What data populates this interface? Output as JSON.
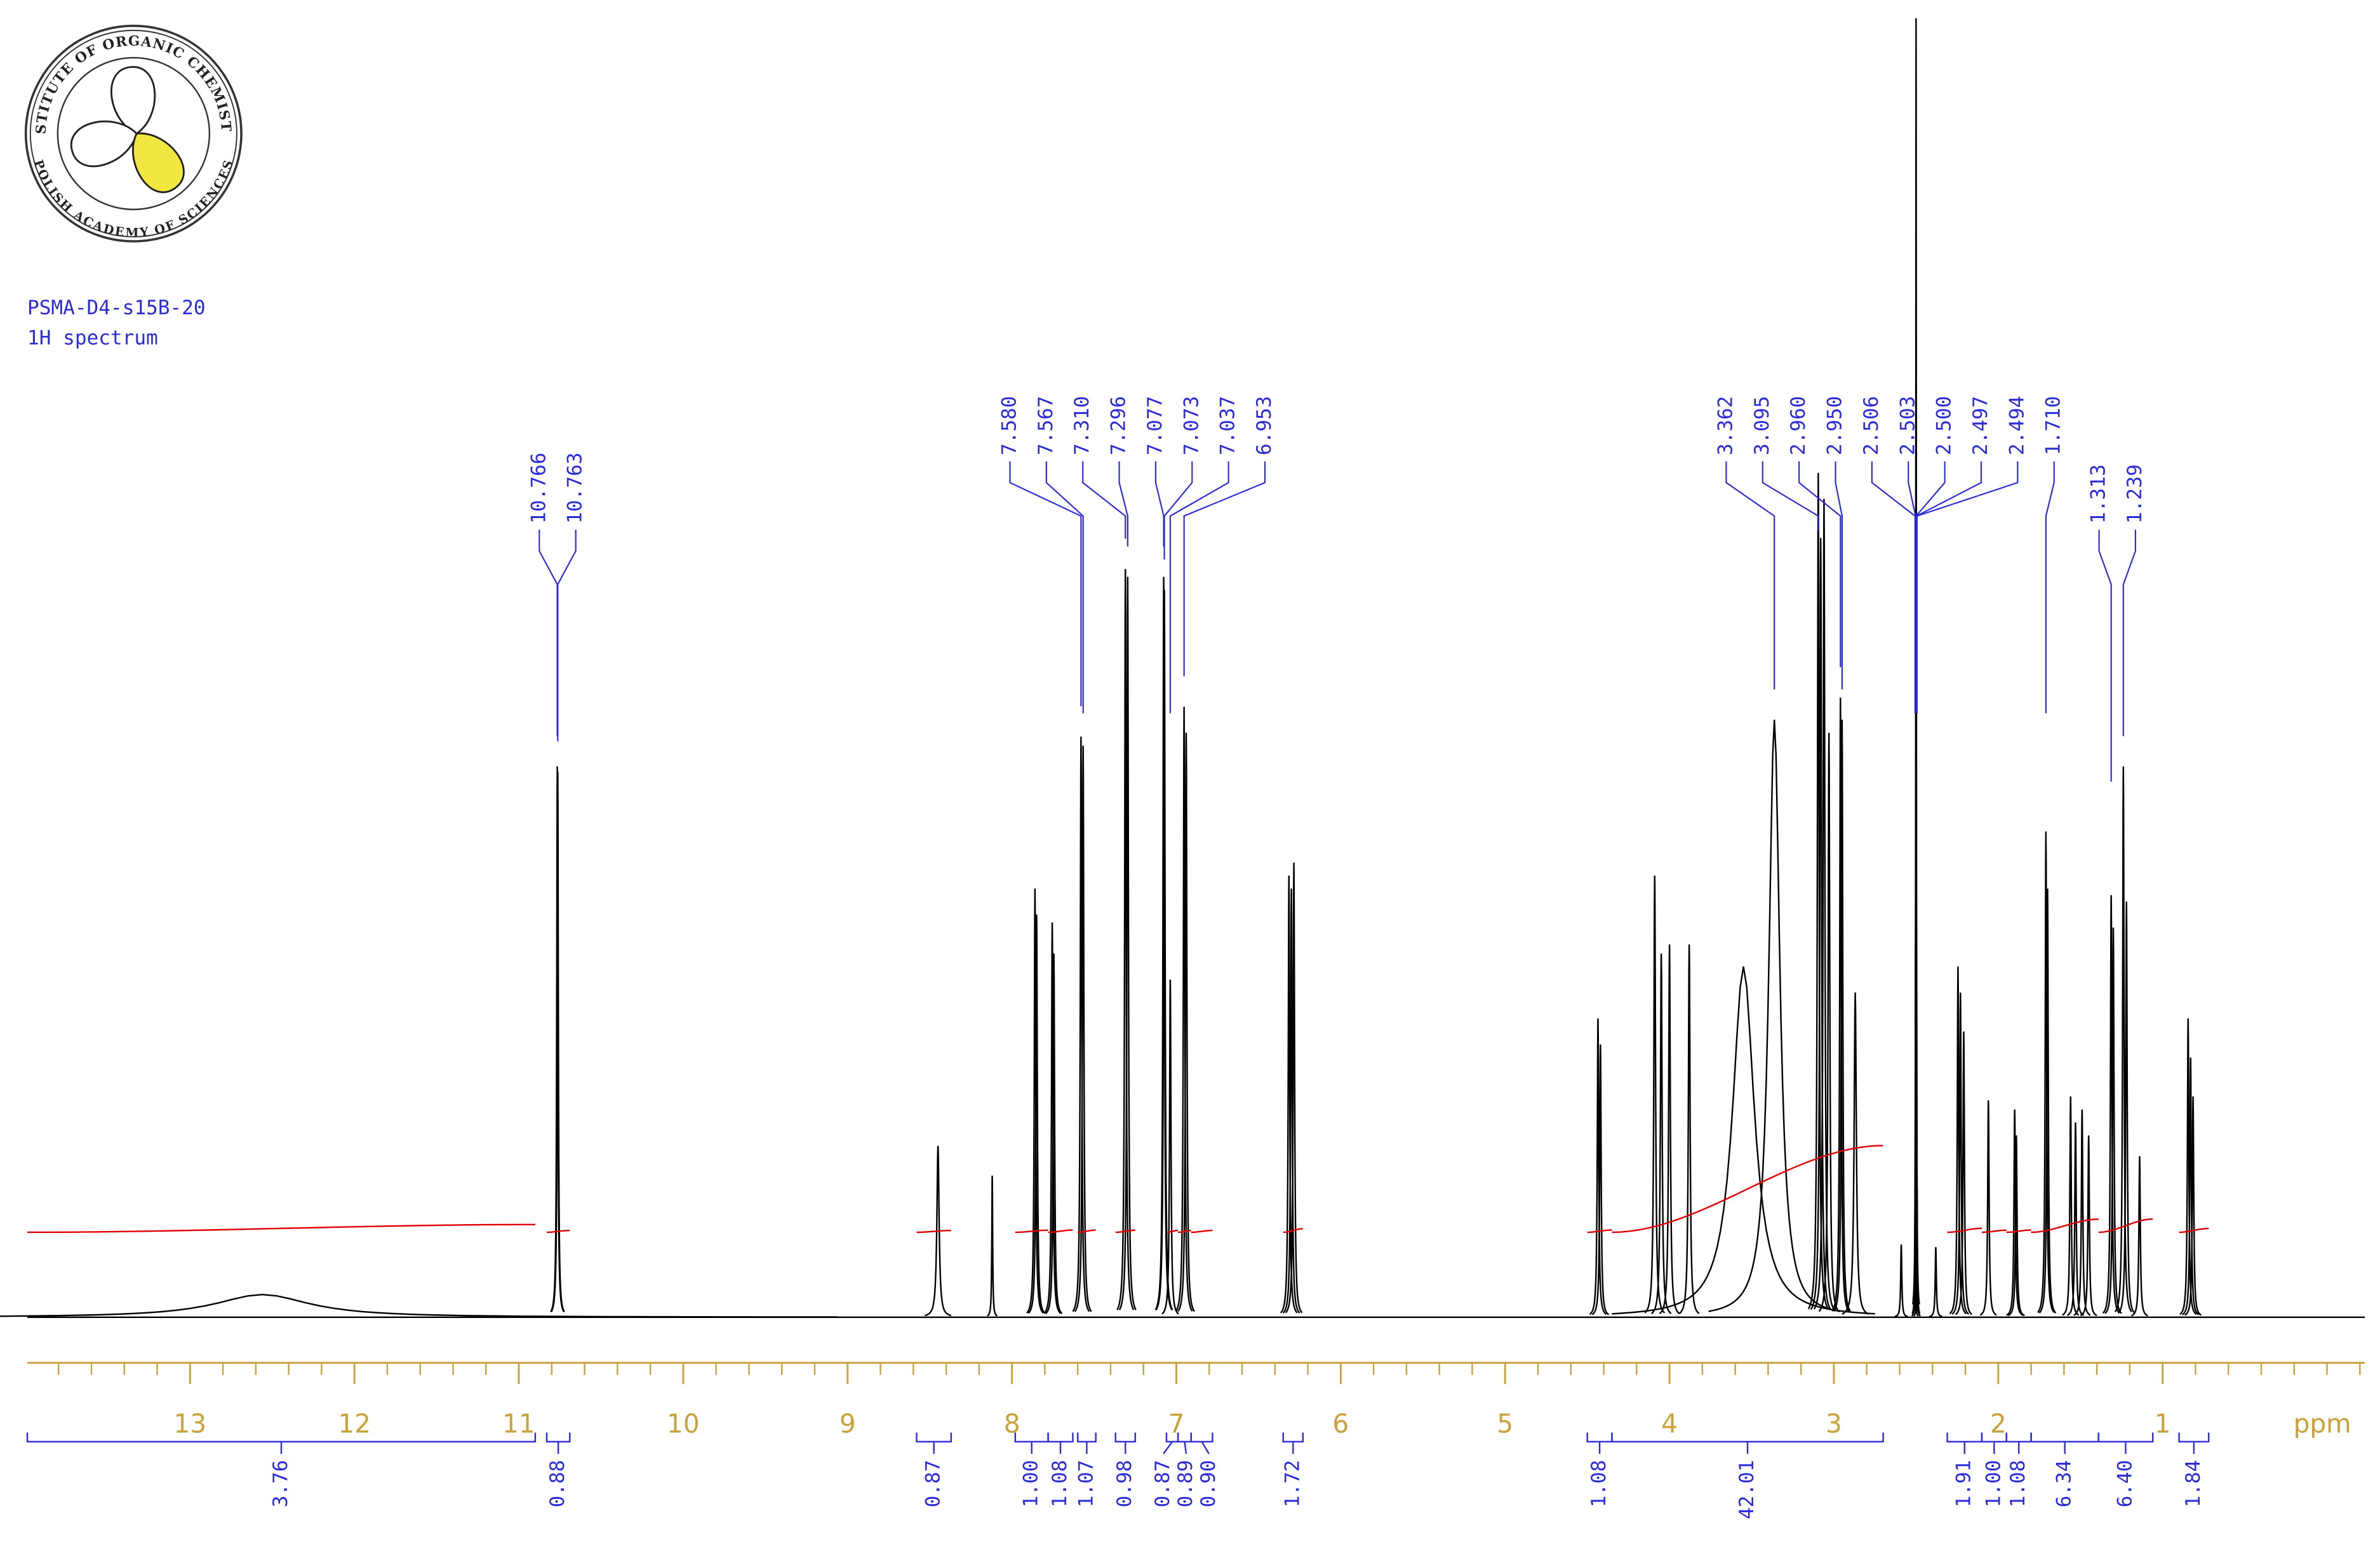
{
  "logo": {
    "top_text": "INSTITUTE OF ORGANIC CHEMISTRY",
    "bottom_text": "POLISH ACADEMY OF SCIENCES"
  },
  "chart_data": {
    "type": "spectrum",
    "title": "PSMA-D4-s15B-20",
    "subtitle": "1H spectrum",
    "xlabel": "ppm",
    "xlim": [
      13.99,
      -0.23
    ],
    "xticks": [
      13,
      12,
      11,
      10,
      9,
      8,
      7,
      6,
      5,
      4,
      3,
      2,
      1
    ],
    "ylim": [
      0,
      100
    ],
    "line_color": "#000000",
    "label_color": "#2b2bd9",
    "integral_color": "#e00000",
    "axis_color": "#c9a23a",
    "peaks": [
      {
        "ppm": 12.56,
        "height": 1.75,
        "width": 0.35
      },
      {
        "ppm": 10.766,
        "height": 42.4,
        "width": 0.004
      },
      {
        "ppm": 10.763,
        "height": 42,
        "width": 0.004
      },
      {
        "ppm": 8.45,
        "height": 13.2,
        "width": 0.008
      },
      {
        "ppm": 8.12,
        "height": 10.9,
        "width": 0.003
      },
      {
        "ppm": 7.86,
        "height": 33,
        "width": 0.005
      },
      {
        "ppm": 7.85,
        "height": 31,
        "width": 0.005
      },
      {
        "ppm": 7.755,
        "height": 30.4,
        "width": 0.005
      },
      {
        "ppm": 7.745,
        "height": 28,
        "width": 0.005
      },
      {
        "ppm": 7.58,
        "height": 44.7,
        "width": 0.005
      },
      {
        "ppm": 7.567,
        "height": 44,
        "width": 0.005
      },
      {
        "ppm": 7.31,
        "height": 57.6,
        "width": 0.005
      },
      {
        "ppm": 7.296,
        "height": 57,
        "width": 0.005
      },
      {
        "ppm": 7.077,
        "height": 57,
        "width": 0.005
      },
      {
        "ppm": 7.073,
        "height": 56,
        "width": 0.005
      },
      {
        "ppm": 7.037,
        "height": 26,
        "width": 0.005
      },
      {
        "ppm": 6.953,
        "height": 47,
        "width": 0.005
      },
      {
        "ppm": 6.94,
        "height": 45,
        "width": 0.005
      },
      {
        "ppm": 6.315,
        "height": 34,
        "width": 0.005
      },
      {
        "ppm": 6.3,
        "height": 33,
        "width": 0.005
      },
      {
        "ppm": 6.285,
        "height": 35,
        "width": 0.005
      },
      {
        "ppm": 4.435,
        "height": 23,
        "width": 0.005
      },
      {
        "ppm": 4.42,
        "height": 21,
        "width": 0.005
      },
      {
        "ppm": 4.09,
        "height": 34,
        "width": 0.006
      },
      {
        "ppm": 4.05,
        "height": 28,
        "width": 0.006
      },
      {
        "ppm": 4.0,
        "height": 28.7,
        "width": 0.006
      },
      {
        "ppm": 3.88,
        "height": 28.7,
        "width": 0.006
      },
      {
        "ppm": 3.55,
        "height": 27,
        "width": 0.08
      },
      {
        "ppm": 3.362,
        "height": 46,
        "width": 0.04
      },
      {
        "ppm": 3.095,
        "height": 65,
        "width": 0.006
      },
      {
        "ppm": 3.08,
        "height": 60,
        "width": 0.006
      },
      {
        "ppm": 3.06,
        "height": 63,
        "width": 0.006
      },
      {
        "ppm": 3.03,
        "height": 45,
        "width": 0.006
      },
      {
        "ppm": 2.96,
        "height": 47.7,
        "width": 0.005
      },
      {
        "ppm": 2.95,
        "height": 46,
        "width": 0.005
      },
      {
        "ppm": 2.87,
        "height": 25,
        "width": 0.008
      },
      {
        "ppm": 2.59,
        "height": 5.6,
        "width": 0.004
      },
      {
        "ppm": 2.506,
        "height": 10,
        "width": 0.002
      },
      {
        "ppm": 2.503,
        "height": 30,
        "width": 0.002
      },
      {
        "ppm": 2.5,
        "height": 100,
        "width": 0.002
      },
      {
        "ppm": 2.497,
        "height": 30,
        "width": 0.002
      },
      {
        "ppm": 2.494,
        "height": 10,
        "width": 0.002
      },
      {
        "ppm": 2.38,
        "height": 5.4,
        "width": 0.004
      },
      {
        "ppm": 2.245,
        "height": 27,
        "width": 0.005
      },
      {
        "ppm": 2.23,
        "height": 25,
        "width": 0.005
      },
      {
        "ppm": 2.21,
        "height": 22,
        "width": 0.005
      },
      {
        "ppm": 2.06,
        "height": 16.7,
        "width": 0.005
      },
      {
        "ppm": 1.9,
        "height": 16,
        "width": 0.005
      },
      {
        "ppm": 1.89,
        "height": 14,
        "width": 0.005
      },
      {
        "ppm": 1.71,
        "height": 37.4,
        "width": 0.005
      },
      {
        "ppm": 1.7,
        "height": 33,
        "width": 0.005
      },
      {
        "ppm": 1.56,
        "height": 17,
        "width": 0.005
      },
      {
        "ppm": 1.53,
        "height": 15,
        "width": 0.005
      },
      {
        "ppm": 1.49,
        "height": 16,
        "width": 0.005
      },
      {
        "ppm": 1.45,
        "height": 14,
        "width": 0.005
      },
      {
        "ppm": 1.313,
        "height": 32.5,
        "width": 0.005
      },
      {
        "ppm": 1.3,
        "height": 30,
        "width": 0.005
      },
      {
        "ppm": 1.239,
        "height": 42.4,
        "width": 0.005
      },
      {
        "ppm": 1.22,
        "height": 32,
        "width": 0.005
      },
      {
        "ppm": 1.14,
        "height": 12.4,
        "width": 0.005
      },
      {
        "ppm": 0.845,
        "height": 23,
        "width": 0.005
      },
      {
        "ppm": 0.83,
        "height": 20,
        "width": 0.005
      },
      {
        "ppm": 0.815,
        "height": 17,
        "width": 0.005
      }
    ],
    "peak_labels": [
      10.766,
      10.763,
      {
        "value": 7.58,
        "label": "7.580"
      },
      7.567,
      {
        "value": 7.31,
        "label": "7.310"
      },
      7.296,
      7.077,
      7.073,
      7.037,
      6.953,
      3.362,
      3.095,
      {
        "value": 2.96,
        "label": "2.960"
      },
      {
        "value": 2.95,
        "label": "2.950"
      },
      2.506,
      2.503,
      {
        "value": 2.5,
        "label": "2.500"
      },
      2.497,
      2.494,
      {
        "value": 1.71,
        "label": "1.710"
      },
      1.313,
      1.239
    ],
    "integrals": [
      {
        "value": 3.76,
        "from": 13.99,
        "to": 10.9
      },
      {
        "value": 0.88,
        "from": 10.83,
        "to": 10.69
      },
      {
        "value": 0.87,
        "from": 8.58,
        "to": 8.37
      },
      {
        "value": 1.0,
        "label": "1.00",
        "from": 7.98,
        "to": 7.78
      },
      {
        "value": 1.08,
        "from": 7.78,
        "to": 7.63
      },
      {
        "value": 1.07,
        "from": 7.6,
        "to": 7.49
      },
      {
        "value": 0.98,
        "from": 7.37,
        "to": 7.25
      },
      {
        "value": 0.87,
        "from": 7.06,
        "to": 6.99
      },
      {
        "value": 0.89,
        "from": 6.99,
        "to": 6.91
      },
      {
        "value": 0.9,
        "label": "0.90",
        "from": 6.91,
        "to": 6.78
      },
      {
        "value": 1.72,
        "from": 6.35,
        "to": 6.23
      },
      {
        "value": 1.08,
        "from": 4.5,
        "to": 4.35
      },
      {
        "value": 42.01,
        "from": 4.35,
        "to": 2.7
      },
      {
        "value": 1.91,
        "from": 2.31,
        "to": 2.1
      },
      {
        "value": 1.0,
        "label": "1.00",
        "from": 2.1,
        "to": 1.95
      },
      {
        "value": 1.08,
        "from": 1.95,
        "to": 1.8
      },
      {
        "value": 6.34,
        "from": 1.8,
        "to": 1.39
      },
      {
        "value": 6.4,
        "label": "6.40",
        "from": 1.39,
        "to": 1.06
      },
      {
        "value": 1.84,
        "from": 0.9,
        "to": 0.72
      }
    ]
  }
}
